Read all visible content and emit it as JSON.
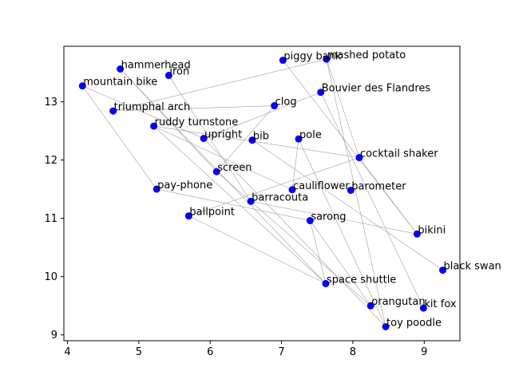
{
  "chart_data": {
    "type": "scatter",
    "title": "",
    "xlabel": "",
    "ylabel": "",
    "xlim": [
      3.95,
      9.5
    ],
    "ylim": [
      8.9,
      13.95
    ],
    "xticks": [
      4,
      5,
      6,
      7,
      8,
      9
    ],
    "yticks": [
      9,
      10,
      11,
      12,
      13
    ],
    "grid": false,
    "colors": {
      "point": "#0000ff",
      "edge": "#a0a0a0",
      "axis": "#000000"
    },
    "points": [
      {
        "label": "hammerhead",
        "x": 4.74,
        "y": 13.56
      },
      {
        "label": "iron",
        "x": 5.42,
        "y": 13.45
      },
      {
        "label": "piggy bank",
        "x": 7.02,
        "y": 13.71
      },
      {
        "label": "mashed potato",
        "x": 7.63,
        "y": 13.73
      },
      {
        "label": "mountain bike",
        "x": 4.21,
        "y": 13.27
      },
      {
        "label": "Bouvier des Flandres",
        "x": 7.55,
        "y": 13.16
      },
      {
        "label": "clog",
        "x": 6.9,
        "y": 12.93
      },
      {
        "label": "triumphal arch",
        "x": 4.64,
        "y": 12.84
      },
      {
        "label": "ruddy turnstone",
        "x": 5.21,
        "y": 12.58
      },
      {
        "label": "upright",
        "x": 5.91,
        "y": 12.37
      },
      {
        "label": "bib",
        "x": 6.59,
        "y": 12.34
      },
      {
        "label": "pole",
        "x": 7.24,
        "y": 12.36
      },
      {
        "label": "cocktail shaker",
        "x": 8.09,
        "y": 12.04
      },
      {
        "label": "screen",
        "x": 6.09,
        "y": 11.8
      },
      {
        "label": "pay-phone",
        "x": 5.25,
        "y": 11.5
      },
      {
        "label": "cauliflower",
        "x": 7.15,
        "y": 11.49
      },
      {
        "label": "barometer",
        "x": 7.97,
        "y": 11.48
      },
      {
        "label": "barracouta",
        "x": 6.57,
        "y": 11.29
      },
      {
        "label": "ballpoint",
        "x": 5.7,
        "y": 11.04
      },
      {
        "label": "sarong",
        "x": 7.4,
        "y": 10.96
      },
      {
        "label": "bikini",
        "x": 8.9,
        "y": 10.73
      },
      {
        "label": "black swan",
        "x": 9.26,
        "y": 10.11
      },
      {
        "label": "space shuttle",
        "x": 7.62,
        "y": 9.88
      },
      {
        "label": "orangutan",
        "x": 8.25,
        "y": 9.5
      },
      {
        "label": "kit fox",
        "x": 8.99,
        "y": 9.46
      },
      {
        "label": "toy poodle",
        "x": 8.46,
        "y": 9.14
      }
    ],
    "edges": [
      [
        "hammerhead",
        "screen"
      ],
      [
        "hammerhead",
        "space shuttle"
      ],
      [
        "iron",
        "barracouta"
      ],
      [
        "mountain bike",
        "pay-phone"
      ],
      [
        "mountain bike",
        "upright"
      ],
      [
        "triumphal arch",
        "mashed potato"
      ],
      [
        "triumphal arch",
        "clog"
      ],
      [
        "piggy bank",
        "bikini"
      ],
      [
        "mashed potato",
        "toy poodle"
      ],
      [
        "mashed potato",
        "cocktail shaker"
      ],
      [
        "Bouvier des Flandres",
        "upright"
      ],
      [
        "Bouvier des Flandres",
        "kit fox"
      ],
      [
        "ruddy turnstone",
        "cocktail shaker"
      ],
      [
        "ruddy turnstone",
        "cauliflower"
      ],
      [
        "ruddy turnstone",
        "space shuttle"
      ],
      [
        "upright",
        "toy poodle"
      ],
      [
        "bib",
        "black swan"
      ],
      [
        "pole",
        "cauliflower"
      ],
      [
        "pole",
        "toy poodle"
      ],
      [
        "cocktail shaker",
        "bikini"
      ],
      [
        "cocktail shaker",
        "ballpoint"
      ],
      [
        "screen",
        "clog"
      ],
      [
        "screen",
        "orangutan"
      ],
      [
        "pay-phone",
        "sarong"
      ],
      [
        "barracouta",
        "bikini"
      ],
      [
        "ballpoint",
        "space shuttle"
      ],
      [
        "sarong",
        "space shuttle"
      ],
      [
        "sarong",
        "orangutan"
      ]
    ]
  }
}
